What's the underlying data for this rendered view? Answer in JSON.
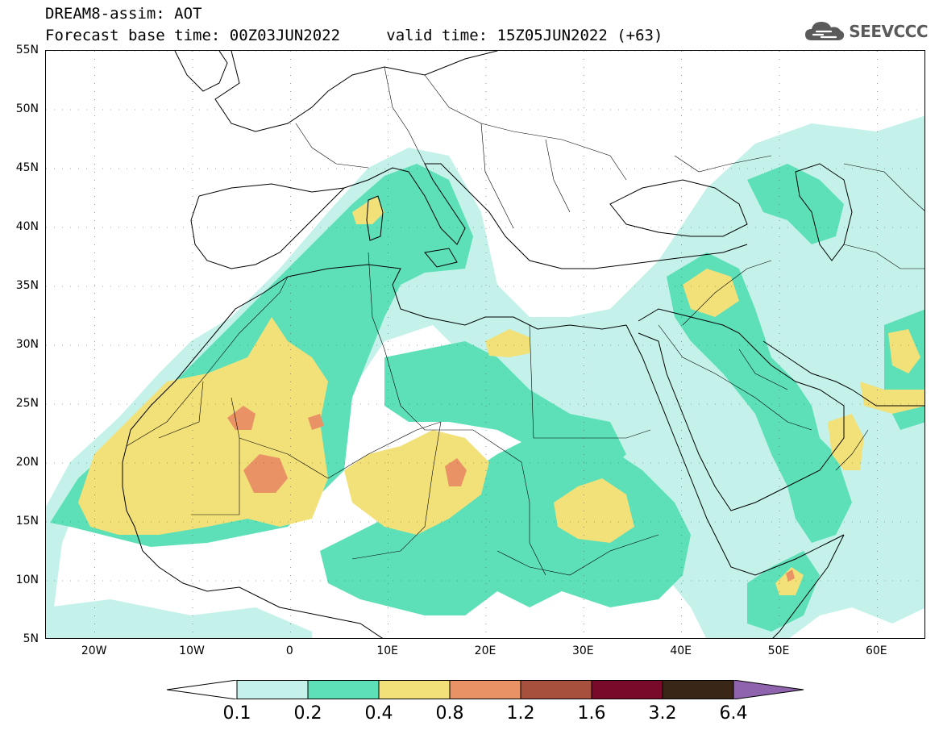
{
  "header": {
    "title_line1": "DREAM8-assim: AOT",
    "base_time_label": "Forecast base time: 00Z03JUN2022",
    "valid_time_label": "valid time: 15Z05JUN2022 (+63)"
  },
  "logo": {
    "text": "SEEVCCC",
    "icon": "cloud-icon",
    "color": "#5a5a5a"
  },
  "map": {
    "lon_range": [
      -25,
      65
    ],
    "lat_range": [
      5,
      55
    ],
    "lat_labels": [
      "55N",
      "50N",
      "45N",
      "40N",
      "35N",
      "30N",
      "25N",
      "20N",
      "15N",
      "10N",
      "5N"
    ],
    "lat_values": [
      55,
      50,
      45,
      40,
      35,
      30,
      25,
      20,
      15,
      10,
      5
    ],
    "lon_labels": [
      "20W",
      "10W",
      "0",
      "10E",
      "20E",
      "30E",
      "40E",
      "50E",
      "60E"
    ],
    "lon_values": [
      -20,
      -10,
      0,
      10,
      20,
      30,
      40,
      50,
      60
    ],
    "gridlines": true
  },
  "colorbar": {
    "labels": [
      "0.1",
      "0.2",
      "0.4",
      "0.8",
      "1.2",
      "1.6",
      "3.2",
      "6.4"
    ],
    "colors": [
      "#c4f2ea",
      "#5de0b8",
      "#f2e079",
      "#e89266",
      "#a8503e",
      "#7a0a2a",
      "#3a2616"
    ],
    "under_color": "#ffffff",
    "over_color": "#8f63ad"
  }
}
